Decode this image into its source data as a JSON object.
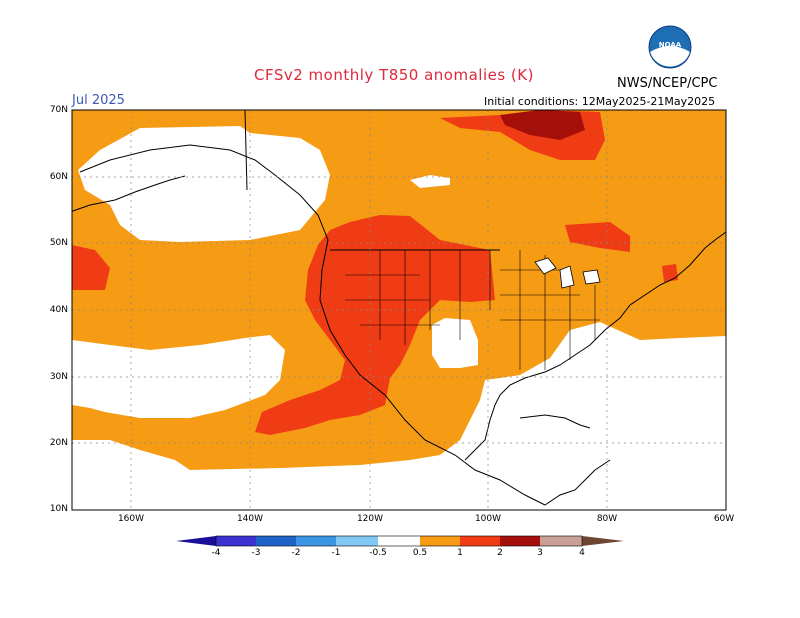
{
  "title": "CFSv2 monthly T850 anomalies (K)",
  "period": "Jul 2025",
  "source": "NWS/NCEP/CPC",
  "initial_conditions": "Initial conditions: 12May2025-21May2025",
  "logo_text": "NOAA",
  "lat_labels": [
    "70N",
    "60N",
    "50N",
    "40N",
    "30N",
    "20N",
    "10N"
  ],
  "lon_labels": [
    "160W",
    "140W",
    "120W",
    "100W",
    "80W",
    "60W"
  ],
  "colorbar": {
    "ticks": [
      "-4",
      "-3",
      "-2",
      "-1",
      "-0.5",
      "0.5",
      "1",
      "2",
      "3",
      "4"
    ],
    "colors": [
      "#1a0f9a",
      "#3c32d0",
      "#1e64c8",
      "#3c96e6",
      "#82c8f5",
      "#ffffff",
      "#f59b14",
      "#f03c14",
      "#a50f0a",
      "#c8a096",
      "#6e4632"
    ]
  },
  "colors": {
    "weak_warm": "#f59b14",
    "moderate_warm": "#f03c14",
    "strong_warm": "#a50f0a",
    "title_red": "#e0283c",
    "period_blue": "#3c5ab4"
  }
}
